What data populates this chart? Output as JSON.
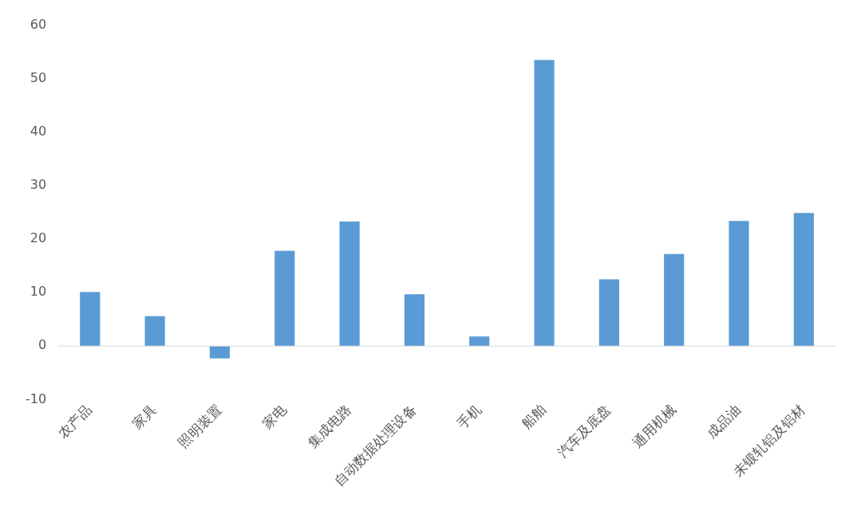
{
  "chart_data": {
    "type": "bar",
    "categories": [
      "农产品",
      "家具",
      "照明装置",
      "家电",
      "集成电路",
      "自动数据处理设备",
      "手机",
      "船舶",
      "汽车及底盘",
      "通用机械",
      "成品油",
      "未锻轧铝及铝材"
    ],
    "values": [
      10.1,
      5.6,
      -2.3,
      17.8,
      23.3,
      9.7,
      1.8,
      53.5,
      12.5,
      17.2,
      23.4,
      24.9
    ],
    "color": "#5b9bd5",
    "ylim": [
      -10,
      60
    ],
    "yticks": [
      -10,
      0,
      10,
      20,
      30,
      40,
      50,
      60
    ],
    "grid": false,
    "legend": false,
    "ref_lines": [
      {
        "axis": "y",
        "value": 0,
        "color": "#d9d9d9"
      }
    ]
  }
}
